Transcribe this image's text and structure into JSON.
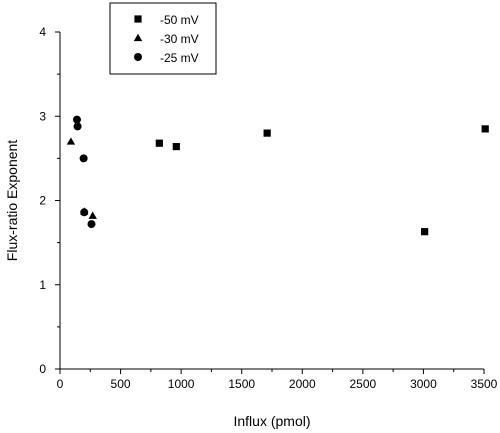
{
  "chart_data": {
    "type": "scatter",
    "title": "",
    "xlabel": "Influx (pmol)",
    "ylabel": "Flux-ratio Exponent",
    "xlim": [
      0,
      3500
    ],
    "ylim": [
      0,
      4
    ],
    "xticks": [
      0,
      500,
      1000,
      1500,
      2000,
      2500,
      3000,
      3500
    ],
    "yticks": [
      0,
      1,
      2,
      3,
      4
    ],
    "grid": false,
    "legend_position": "top-center",
    "series": [
      {
        "name": "-50 mV",
        "marker": "square",
        "color": "#000000",
        "points": [
          {
            "x": 820,
            "y": 2.68
          },
          {
            "x": 960,
            "y": 2.64
          },
          {
            "x": 1710,
            "y": 2.8
          },
          {
            "x": 3010,
            "y": 1.63
          },
          {
            "x": 3510,
            "y": 2.85
          }
        ]
      },
      {
        "name": "-30 mV",
        "marker": "triangle",
        "color": "#000000",
        "points": [
          {
            "x": 90,
            "y": 2.7
          },
          {
            "x": 200,
            "y": 1.87
          },
          {
            "x": 270,
            "y": 1.82
          }
        ]
      },
      {
        "name": "-25 mV",
        "marker": "circle",
        "color": "#000000",
        "points": [
          {
            "x": 140,
            "y": 2.96
          },
          {
            "x": 145,
            "y": 2.88
          },
          {
            "x": 195,
            "y": 2.5
          },
          {
            "x": 200,
            "y": 1.86
          },
          {
            "x": 260,
            "y": 1.72
          }
        ]
      }
    ]
  }
}
